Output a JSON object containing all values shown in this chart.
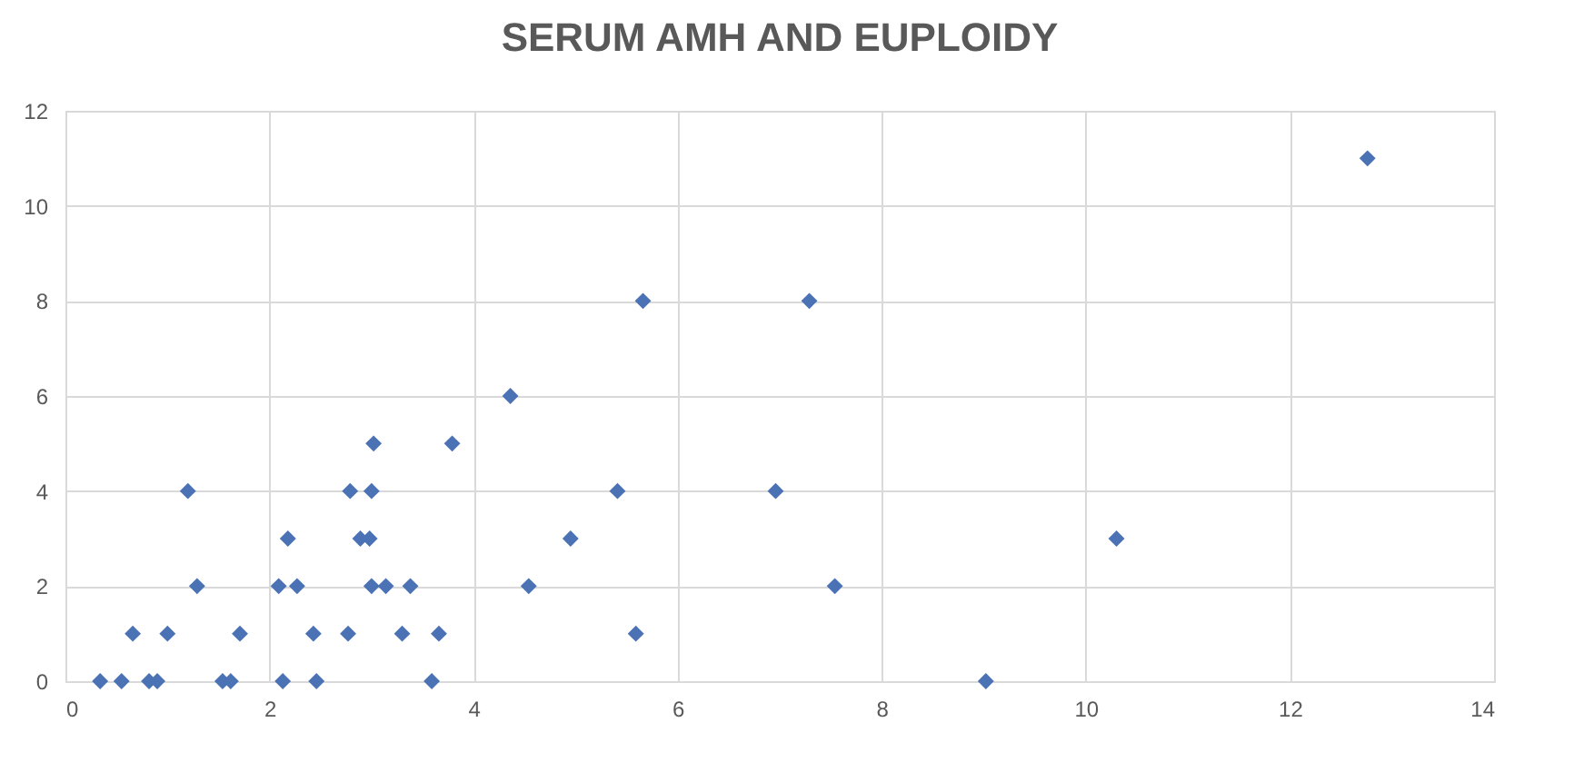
{
  "chart_data": {
    "type": "scatter",
    "title": "SERUM AMH AND EUPLOIDY",
    "x": [
      0.34,
      0.55,
      0.82,
      0.9,
      1.54,
      1.62,
      2.13,
      2.46,
      3.59,
      9.02,
      0.66,
      1.0,
      1.71,
      2.43,
      2.77,
      3.3,
      3.66,
      5.59,
      1.29,
      2.09,
      2.27,
      3.0,
      3.14,
      3.38,
      4.54,
      7.54,
      2.18,
      2.89,
      2.98,
      4.95,
      10.3,
      1.2,
      2.79,
      3.0,
      5.41,
      6.96,
      3.02,
      3.79,
      4.36,
      5.66,
      7.29,
      12.76
    ],
    "series": [
      {
        "color": "#4a72b5",
        "values": [
          0,
          0,
          0,
          0,
          0,
          0,
          0,
          0,
          0,
          0,
          1,
          1,
          1,
          1,
          1,
          1,
          1,
          1,
          2,
          2,
          2,
          2,
          2,
          2,
          2,
          2,
          3,
          3,
          3,
          3,
          3,
          4,
          4,
          4,
          4,
          4,
          5,
          5,
          6,
          8,
          8,
          11
        ]
      }
    ],
    "xlim": [
      0,
      14
    ],
    "xticks": [
      0,
      2,
      4,
      6,
      8,
      10,
      12,
      14
    ],
    "ylim": [
      0,
      12
    ],
    "yticks": [
      0,
      2,
      4,
      6,
      8,
      10,
      12
    ],
    "grid": true,
    "marker": "diamond"
  }
}
